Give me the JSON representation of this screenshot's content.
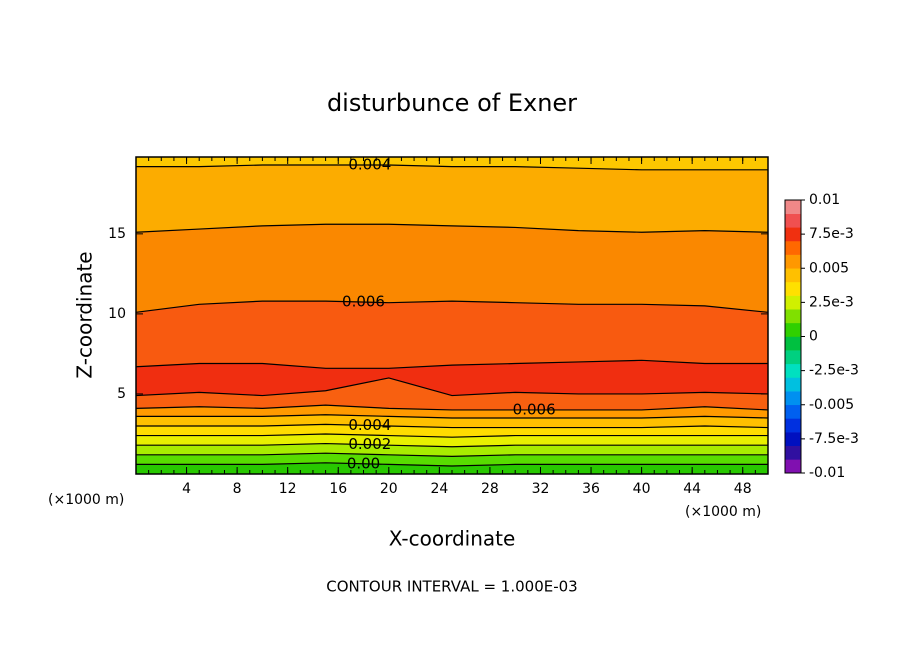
{
  "chart_data": {
    "type": "contour",
    "title": "disturbunce of Exner",
    "x_label": "X-coordinate",
    "y_label": "Z-coordinate",
    "x_unit": "(×1000 m)",
    "footnote": "CONTOUR INTERVAL = 1.000E-03",
    "xlim": [
      0,
      50
    ],
    "ylim": [
      0,
      19.8
    ],
    "xticks": [
      4,
      8,
      12,
      16,
      20,
      24,
      28,
      32,
      36,
      40,
      44,
      48
    ],
    "yticks": [
      5,
      10,
      15
    ],
    "x": [
      0,
      5,
      10,
      15,
      20,
      25,
      30,
      35,
      40,
      45,
      50
    ],
    "band_colors": [
      "#28c800",
      "#58dc00",
      "#a8ec00",
      "#e8f000",
      "#ffdc00",
      "#ffc000",
      "#ff9a00",
      "#f86010",
      "#f02e10",
      "#f85a10",
      "#fa8800",
      "#fcac00",
      "#fdc800"
    ],
    "contours": [
      {
        "level": 0.0,
        "label": "0.00",
        "z": [
          0.6,
          0.6,
          0.6,
          0.7,
          0.6,
          0.5,
          0.6,
          0.6,
          0.6,
          0.6,
          0.6
        ]
      },
      {
        "level": 0.001,
        "z": [
          1.2,
          1.2,
          1.2,
          1.3,
          1.2,
          1.1,
          1.2,
          1.2,
          1.2,
          1.2,
          1.2
        ]
      },
      {
        "level": 0.002,
        "label": "0.002",
        "z": [
          1.8,
          1.8,
          1.8,
          1.9,
          1.8,
          1.7,
          1.8,
          1.8,
          1.8,
          1.8,
          1.8
        ]
      },
      {
        "level": 0.003,
        "z": [
          2.4,
          2.4,
          2.4,
          2.5,
          2.4,
          2.3,
          2.4,
          2.4,
          2.4,
          2.4,
          2.4
        ]
      },
      {
        "level": 0.004,
        "label": "0.004",
        "z": [
          3.0,
          3.0,
          3.0,
          3.1,
          3.0,
          2.9,
          2.9,
          2.9,
          2.9,
          3.0,
          2.9
        ]
      },
      {
        "level": 0.005,
        "z": [
          3.6,
          3.6,
          3.6,
          3.7,
          3.6,
          3.5,
          3.5,
          3.5,
          3.5,
          3.6,
          3.5
        ]
      },
      {
        "level": 0.006,
        "label": "0.006",
        "z": [
          4.1,
          4.2,
          4.1,
          4.3,
          4.1,
          4.0,
          4.0,
          4.0,
          4.0,
          4.2,
          4.0
        ]
      },
      {
        "level": 0.007,
        "z": [
          4.9,
          5.1,
          4.9,
          5.2,
          6.0,
          4.9,
          5.1,
          5.0,
          5.0,
          5.1,
          5.0
        ]
      },
      {
        "level": 0.007,
        "z": [
          6.7,
          6.9,
          6.9,
          6.6,
          6.6,
          6.8,
          6.9,
          7.0,
          7.1,
          6.9,
          6.9
        ]
      },
      {
        "level": 0.006,
        "label": "0.006",
        "z": [
          10.1,
          10.6,
          10.8,
          10.8,
          10.7,
          10.8,
          10.7,
          10.6,
          10.6,
          10.5,
          10.1
        ]
      },
      {
        "level": 0.005,
        "z": [
          15.1,
          15.3,
          15.5,
          15.6,
          15.6,
          15.5,
          15.4,
          15.2,
          15.1,
          15.2,
          15.1
        ]
      },
      {
        "level": 0.004,
        "label": "0.004",
        "z": [
          19.2,
          19.2,
          19.3,
          19.3,
          19.3,
          19.2,
          19.2,
          19.1,
          19.0,
          19.0,
          19.0
        ]
      }
    ],
    "colorbar": {
      "lim": [
        -0.01,
        0.01
      ],
      "colors": [
        "#8010b0",
        "#3010a0",
        "#0010c0",
        "#0030e0",
        "#0060f0",
        "#0090f0",
        "#00c0e0",
        "#00e0c0",
        "#00d080",
        "#00c040",
        "#30d000",
        "#80e000",
        "#d0f000",
        "#ffe000",
        "#ffc000",
        "#ff9800",
        "#ff6800",
        "#f03010",
        "#f05050",
        "#f08888"
      ],
      "ticks": [
        0.01,
        {
          "value": 0.0075,
          "label": "7.5e-3"
        },
        0.005,
        {
          "value": 0.0025,
          "label": "2.5e-3"
        },
        0,
        {
          "value": -0.0025,
          "label": "-2.5e-3"
        },
        -0.005,
        {
          "value": -0.0075,
          "label": "-7.5e-3"
        },
        -0.01
      ]
    }
  }
}
